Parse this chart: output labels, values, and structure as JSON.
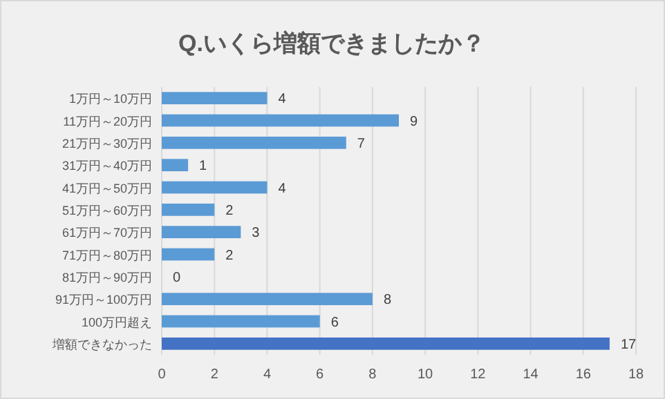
{
  "chart_data": {
    "type": "bar",
    "orientation": "horizontal",
    "title": "Q.いくら増額できましたか？",
    "categories": [
      "1万円～10万円",
      "11万円～20万円",
      "21万円～30万円",
      "31万円～40万円",
      "41万円～50万円",
      "51万円～60万円",
      "61万円～70万円",
      "71万円～80万円",
      "81万円～90万円",
      "91万円～100万円",
      "100万円超え",
      "増額できなかった"
    ],
    "values": [
      4,
      9,
      7,
      1,
      4,
      2,
      3,
      2,
      0,
      8,
      6,
      17
    ],
    "colors": [
      "#5b9bd5",
      "#5b9bd5",
      "#5b9bd5",
      "#5b9bd5",
      "#5b9bd5",
      "#5b9bd5",
      "#5b9bd5",
      "#5b9bd5",
      "#5b9bd5",
      "#5b9bd5",
      "#5b9bd5",
      "#4472c4"
    ],
    "xlim": [
      0,
      18
    ],
    "xticks": [
      0,
      2,
      4,
      6,
      8,
      10,
      12,
      14,
      16,
      18
    ],
    "grid": "x",
    "data_labels": true
  }
}
